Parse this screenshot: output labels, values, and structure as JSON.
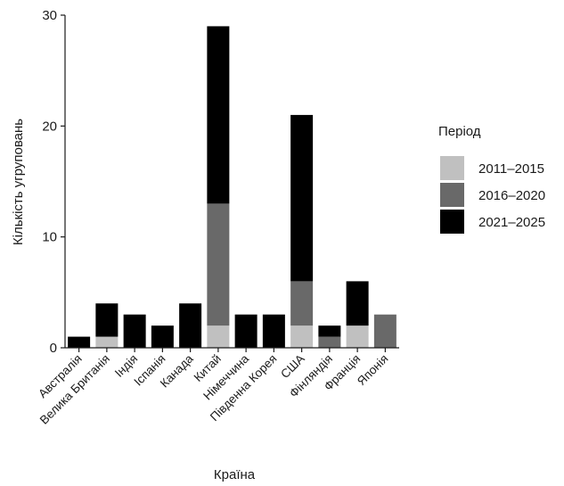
{
  "chart_data": {
    "type": "bar",
    "stacked": true,
    "xlabel": "Країна",
    "ylabel": "Кількість угруповань",
    "ylim": [
      0,
      30
    ],
    "yticks": [
      0,
      10,
      20,
      30
    ],
    "grid": false,
    "legend_position": "right",
    "legend": {
      "title": "Період"
    },
    "categories": [
      "Австралія",
      "Велика Британія",
      "Індія",
      "Іспанія",
      "Канада",
      "Китай",
      "Німеччина",
      "Південна Корея",
      "США",
      "Фінляндія",
      "Франція",
      "Японія"
    ],
    "series": [
      {
        "name": "2011–2015",
        "color": "#c0c0c0",
        "values": [
          0,
          1,
          0,
          0,
          0,
          2,
          0,
          0,
          2,
          0,
          2,
          0
        ]
      },
      {
        "name": "2016–2020",
        "color": "#696969",
        "values": [
          0,
          0,
          0,
          0,
          0,
          11,
          0,
          0,
          4,
          1,
          0,
          3
        ]
      },
      {
        "name": "2021–2025",
        "color": "#000000",
        "values": [
          1,
          3,
          3,
          2,
          4,
          16,
          3,
          3,
          15,
          1,
          4,
          0
        ]
      }
    ]
  }
}
